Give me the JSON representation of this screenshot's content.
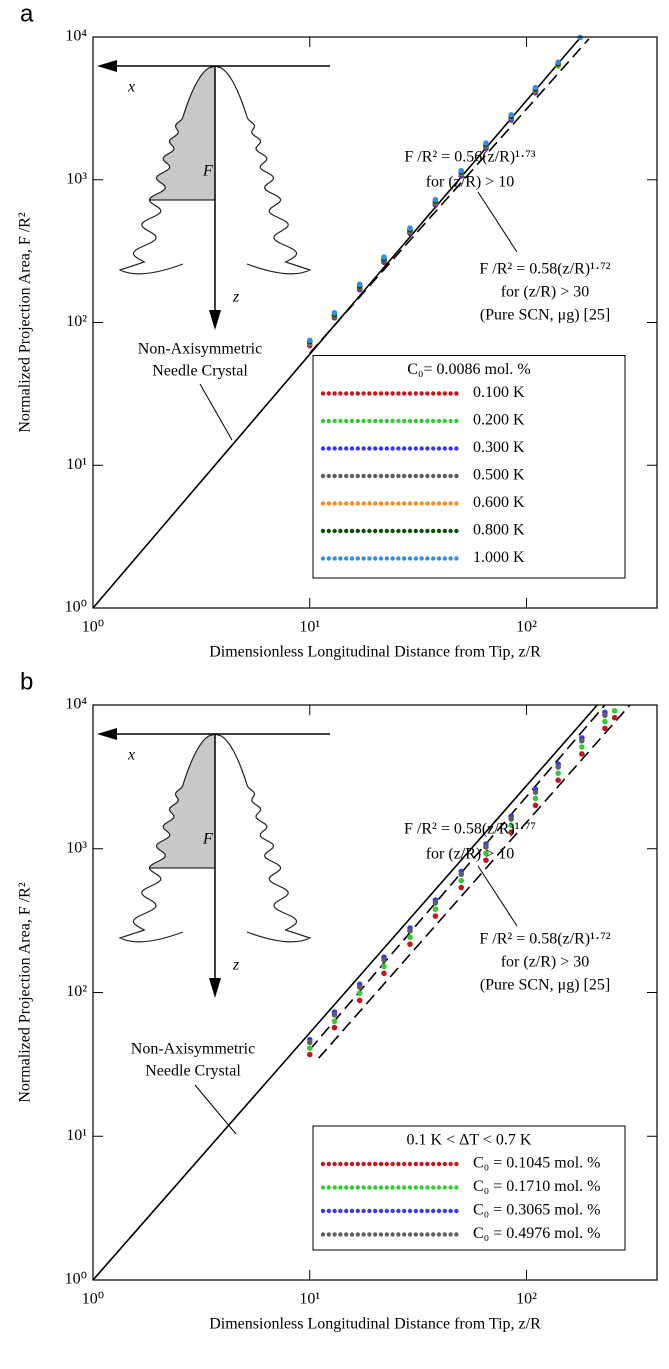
{
  "chart_data": [
    {
      "type": "scatter",
      "panel_label": "a",
      "xlabel": "Dimensionless Longitudinal Distance from Tip, z/R",
      "ylabel": "Normalized Projection Area, F /R²",
      "log_scale": true,
      "xlim": [
        1,
        400
      ],
      "ylim": [
        1,
        10000
      ],
      "xticks": [
        {
          "value": 1,
          "label": "10⁰"
        },
        {
          "value": 10,
          "label": "10¹"
        },
        {
          "value": 100,
          "label": "10²"
        }
      ],
      "yticks": [
        {
          "value": 1,
          "label": "10⁰"
        },
        {
          "value": 10,
          "label": "10¹"
        },
        {
          "value": 100,
          "label": "10²"
        },
        {
          "value": 1000,
          "label": "10³"
        },
        {
          "value": 10000,
          "label": "10⁴"
        }
      ],
      "x": [
        10,
        13,
        17,
        22,
        29,
        38,
        50,
        65,
        85,
        110,
        140,
        177
      ],
      "series": [
        {
          "name": "0.100 K",
          "color": "#c4161c",
          "values": [
            69,
            108,
            170,
            264,
            421,
            667,
            1064,
            1663,
            2623,
            4066,
            null,
            null
          ]
        },
        {
          "name": "0.200 K",
          "color": "#33cc33",
          "values": [
            71,
            110,
            174,
            270,
            431,
            682,
            1088,
            1700,
            2680,
            4155,
            6262,
            null
          ]
        },
        {
          "name": "0.300 K",
          "color": "#3838f0",
          "values": [
            70,
            109,
            172,
            267,
            426,
            674,
            1076,
            1681,
            2651,
            4111,
            null,
            null
          ]
        },
        {
          "name": "0.500 K",
          "color": "#5c5c5c",
          "values": [
            71,
            111,
            176,
            273,
            435,
            689,
            1099,
            1718,
            2708,
            4199,
            null,
            null
          ]
        },
        {
          "name": "0.600 K",
          "color": "#ff8c1a",
          "values": [
            72,
            112,
            178,
            276,
            440,
            696,
            1111,
            1736,
            2737,
            4243,
            6396,
            null
          ]
        },
        {
          "name": "0.800 K",
          "color": "#0b4f0b",
          "values": [
            73,
            113,
            179,
            278,
            444,
            703,
            1122,
            1754,
            2765,
            4287,
            6462,
            null
          ]
        },
        {
          "name": "1.000 K",
          "color": "#2f8fe8",
          "values": [
            75,
            117,
            185,
            287,
            458,
            725,
            1157,
            1808,
            2851,
            4420,
            6662,
            9925
          ]
        }
      ],
      "legend_title": "C₀= 0.0086 mol. %",
      "legend_position": "lower right",
      "reference_lines": [
        {
          "style": "solid",
          "x": [
            1,
            177
          ],
          "values": [
            1,
            9900
          ]
        },
        {
          "style": "dashed",
          "x": [
            10,
            194
          ],
          "values": [
            61,
            9700
          ]
        }
      ],
      "annotations": [
        {
          "lines": [
            "F /R² = 0.56(z/R)¹·⁷³",
            "for (z/R) > 10"
          ]
        },
        {
          "lines": [
            "F /R² = 0.58(z/R)¹·⁷²",
            "for (z/R) > 30",
            "(Pure SCN, μg) [25]"
          ]
        },
        {
          "lines": [
            "Non-Axisymmetric",
            "Needle Crystal"
          ]
        }
      ],
      "inset_labels": {
        "x": "x",
        "z": "z",
        "F": "F"
      }
    },
    {
      "type": "scatter",
      "panel_label": "b",
      "xlabel": "Dimensionless Longitudinal Distance from Tip, z/R",
      "ylabel": "Normalized Projection Area, F /R²",
      "log_scale": true,
      "xlim": [
        1,
        400
      ],
      "ylim": [
        1,
        10000
      ],
      "xticks": [
        {
          "value": 1,
          "label": "10⁰"
        },
        {
          "value": 10,
          "label": "10¹"
        },
        {
          "value": 100,
          "label": "10²"
        }
      ],
      "yticks": [
        {
          "value": 1,
          "label": "10⁰"
        },
        {
          "value": 10,
          "label": "10¹"
        },
        {
          "value": 100,
          "label": "10²"
        },
        {
          "value": 1000,
          "label": "10³"
        },
        {
          "value": 10000,
          "label": "10⁴"
        }
      ],
      "x": [
        10,
        13,
        17,
        22,
        29,
        38,
        50,
        65,
        85,
        110,
        140,
        180,
        230,
        255
      ],
      "series": [
        {
          "name": "C₀ = 0.1045 mol. %",
          "color": "#c4161c",
          "values": [
            37,
            57,
            88,
            136,
            217,
            340,
            537,
            833,
            1303,
            2004,
            2998,
            4565,
            6868,
            8160
          ]
        },
        {
          "name": "C₀ = 0.1710 mol. %",
          "color": "#33cc33",
          "values": [
            41,
            63,
            99,
            152,
            242,
            380,
            600,
            931,
            1456,
            2240,
            3351,
            5102,
            7676,
            9120
          ]
        },
        {
          "name": "C₀ = 0.3065 mol. %",
          "color": "#3838f0",
          "values": [
            47,
            73,
            114,
            176,
            281,
            440,
            695,
            1078,
            1686,
            2594,
            3880,
            5907,
            8888,
            null
          ]
        },
        {
          "name": "C₀ = 0.4976 mol. %",
          "color": "#606060",
          "values": [
            45,
            70,
            109,
            168,
            268,
            420,
            664,
            1029,
            1610,
            2476,
            3703,
            5639,
            8484,
            null
          ]
        }
      ],
      "legend_title": "0.1 K < ΔT < 0.7 K",
      "legend_position": "lower right",
      "reference_lines": [
        {
          "style": "solid",
          "x": [
            1,
            212
          ],
          "values": [
            1,
            10000
          ]
        },
        {
          "style": "dashed",
          "x": [
            10,
            230
          ],
          "values": [
            40,
            10000
          ]
        },
        {
          "style": "dashed",
          "x": [
            11,
            300
          ],
          "values": [
            35,
            10000
          ]
        }
      ],
      "annotations": [
        {
          "lines": [
            "F /R² = 0.58(z/R)¹·⁷⁷",
            "for (z/R) > 10"
          ]
        },
        {
          "lines": [
            "F /R² = 0.58(z/R)¹·⁷²",
            "for (z/R) > 30",
            "(Pure SCN, μg) [25]"
          ]
        },
        {
          "lines": [
            "Non-Axisymmetric",
            "Needle Crystal"
          ]
        }
      ],
      "inset_labels": {
        "x": "x",
        "z": "z",
        "F": "F"
      }
    }
  ]
}
